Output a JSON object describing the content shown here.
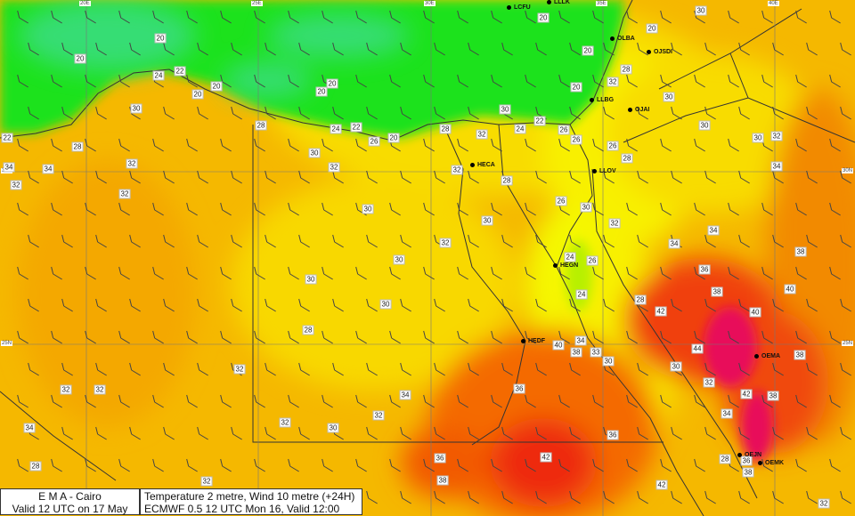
{
  "info": {
    "agency": "E M A  -  Cairo",
    "valid": "Valid 12 UTC on 17 May 2022",
    "field": "Temperature  2 metre, Wind  10 metre (+24H)",
    "model": "ECMWF 0.5 12 UTC Mon 16, Valid 12:00 Tue 17"
  },
  "grid_labels": {
    "lon": [
      "20E",
      "25E",
      "30E",
      "35E",
      "40E"
    ],
    "lat": [
      "30N",
      "25N"
    ]
  },
  "stations": [
    "LCFU",
    "LLLK",
    "OLBA",
    "OJSDI",
    "LLBG",
    "OJAI",
    "HECA",
    "LLOV",
    "HEGN",
    "HEDF",
    "OEMA",
    "OEJN",
    "OEMK"
  ],
  "temperature_labels": [
    "20",
    "20",
    "20",
    "20",
    "24",
    "22",
    "30",
    "20",
    "20",
    "20",
    "20",
    "20",
    "20",
    "30",
    "22",
    "24",
    "26",
    "28",
    "24",
    "22",
    "26",
    "20",
    "28",
    "32",
    "22",
    "28",
    "34",
    "34",
    "32",
    "32",
    "30",
    "32",
    "32",
    "28",
    "30",
    "28",
    "32",
    "30",
    "26",
    "26",
    "28",
    "30",
    "30",
    "32",
    "34",
    "32",
    "30",
    "26",
    "30",
    "30",
    "32",
    "32",
    "30",
    "34",
    "34",
    "38",
    "24",
    "26",
    "36",
    "30",
    "24",
    "28",
    "38",
    "40",
    "30",
    "42",
    "40",
    "28",
    "34",
    "40",
    "38",
    "33",
    "30",
    "44",
    "38",
    "32",
    "30",
    "32",
    "42",
    "38",
    "32",
    "32",
    "36",
    "34",
    "32",
    "34",
    "32",
    "30",
    "34",
    "36",
    "28",
    "36",
    "42",
    "28",
    "36",
    "38",
    "38",
    "42",
    "32",
    "32"
  ],
  "colors": {
    "sea_cool": "#3ddc8a",
    "green": "#1fe21f",
    "yellow": "#f7f200",
    "orange": "#f7b400",
    "dark_orange": "#f58a00",
    "red": "#f02a10",
    "magenta": "#e0105a"
  }
}
